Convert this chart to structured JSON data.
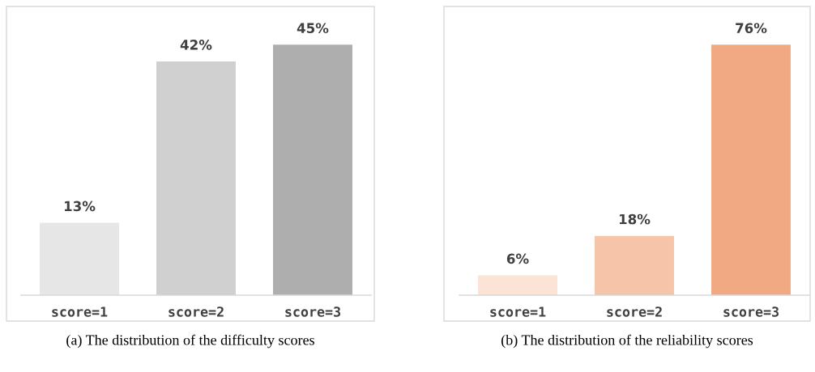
{
  "chart_data": [
    {
      "type": "bar",
      "categories": [
        "score=1",
        "score=2",
        "score=3"
      ],
      "values": [
        13,
        42,
        45
      ],
      "colors": [
        "#e6e6e6",
        "#d0d0d0",
        "#aeaeae"
      ],
      "value_labels": [
        "13%",
        "42%",
        "45%"
      ],
      "grid": false,
      "tick_labels": "x",
      "annotations": [
        "(a) The distribution of the difficulty scores"
      ]
    },
    {
      "type": "bar",
      "categories": [
        "score=1",
        "score=2",
        "score=3"
      ],
      "values": [
        6,
        18,
        76
      ],
      "colors": [
        "#fbe3d6",
        "#f6c4a8",
        "#f1a983"
      ],
      "value_labels": [
        "6%",
        "18%",
        "76%"
      ],
      "grid": false,
      "tick_labels": "x",
      "annotations": [
        "(b) The distribution of the reliability scores"
      ]
    }
  ]
}
